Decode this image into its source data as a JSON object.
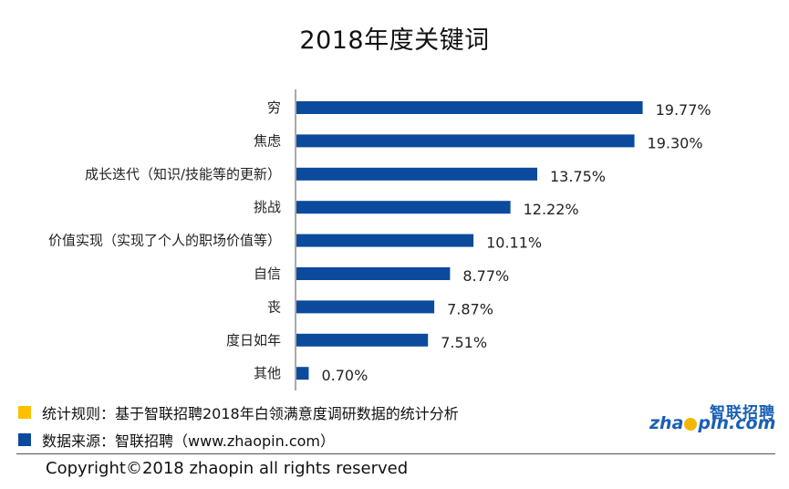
{
  "colors": {
    "bar": "#0b4a9c",
    "axis": "#555555",
    "note1_square": "#ffc000",
    "note2_square": "#0b4a9c"
  },
  "chart_data": {
    "type": "bar",
    "orientation": "horizontal",
    "title": "2018年度关键词",
    "categories": [
      "穷",
      "焦虑",
      "成长迭代（知识/技能等的更新）",
      "挑战",
      "价值实现（实现了个人的职场价值等）",
      "自信",
      "丧",
      "度日如年",
      "其他"
    ],
    "values": [
      19.77,
      19.3,
      13.75,
      12.22,
      10.11,
      8.77,
      7.87,
      7.51,
      0.7
    ],
    "value_labels": [
      "19.77%",
      "19.30%",
      "13.75%",
      "12.22%",
      "10.11%",
      "8.77%",
      "7.87%",
      "7.51%",
      "0.70%"
    ],
    "xlim": [
      0,
      25
    ],
    "grid": false,
    "legend": "none"
  },
  "notes": {
    "rule": "统计规则：基于智联招聘2018年白领满意度调研数据的统计分析",
    "source": "数据来源：智联招聘（www.zhaopin.com）"
  },
  "copyright": "Copyright©2018 zhaopin all rights reserved",
  "logo": {
    "cn": "智联招聘",
    "en_prefix": "zha",
    "en_suffix": "pin.com"
  }
}
